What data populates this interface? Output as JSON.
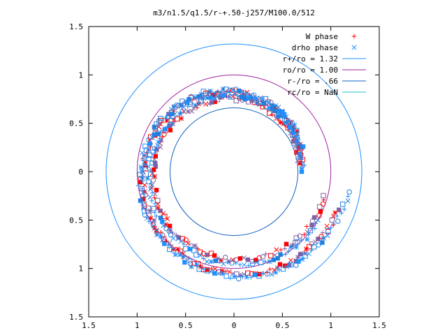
{
  "chart_data": {
    "type": "scatter",
    "title": "m3/n1.5/q1.5/r-+.50-j257/M100.0/512",
    "xlabel": "",
    "ylabel": "",
    "xlim": [
      -1.5,
      1.5
    ],
    "ylim": [
      -1.5,
      1.5
    ],
    "x_tick_labels": [
      "1.5",
      "1",
      "0.5",
      "0",
      "0.5",
      "1",
      "1.5"
    ],
    "y_tick_labels": [
      "1.5",
      "1",
      "0.5",
      "0",
      "0.5",
      "1",
      "1.5"
    ],
    "x_tick_values": [
      -1.5,
      -1,
      -0.5,
      0,
      0.5,
      1,
      1.5
    ],
    "y_tick_values": [
      1.5,
      1,
      0.5,
      0,
      -0.5,
      -1,
      -1.5
    ],
    "grid": false,
    "legend_position": "top-right",
    "legend": [
      {
        "label": "W phase",
        "kind": "marker",
        "marker": "plus",
        "color": "#ff0000"
      },
      {
        "label": "drho phase",
        "kind": "marker",
        "marker": "cross",
        "color": "#1e90ff"
      },
      {
        "label": "r+/ro = 1.32",
        "kind": "line",
        "color": "#1e90ff"
      },
      {
        "label": "ro/ro = 1.00",
        "kind": "line",
        "color": "#a020a0"
      },
      {
        "label": "r-/ro = .66",
        "kind": "line",
        "color": "#1060c0"
      },
      {
        "label": "rc/ro = NaN",
        "kind": "line",
        "color": "#20c0c0"
      }
    ],
    "circles": [
      {
        "name": "r+/ro = 1.32",
        "radius": 1.32,
        "color": "#1e90ff"
      },
      {
        "name": "ro/ro = 1.00",
        "radius": 1.0,
        "color": "#a020a0"
      },
      {
        "name": "r-/ro = .66",
        "radius": 0.66,
        "color": "#1060c0"
      }
    ],
    "series": [
      {
        "name": "W phase",
        "color": "#ff0000",
        "marker_colors": [
          "#ff0000",
          "#8060a0"
        ],
        "arcs": [
          {
            "start_deg": 10,
            "end_deg": 340,
            "r0": 0.72,
            "r1": 1.15,
            "n": 160
          },
          {
            "start_deg": 5,
            "end_deg": 345,
            "r0": 0.68,
            "r1": 0.98,
            "n": 140
          }
        ]
      },
      {
        "name": "drho phase",
        "color": "#1e90ff",
        "marker_colors": [
          "#1e90ff",
          "#2080e0"
        ],
        "arcs": [
          {
            "start_deg": 20,
            "end_deg": 350,
            "r0": 0.74,
            "r1": 1.2,
            "n": 150
          },
          {
            "start_deg": 0,
            "end_deg": 330,
            "r0": 0.7,
            "r1": 1.02,
            "n": 130
          }
        ]
      }
    ]
  }
}
